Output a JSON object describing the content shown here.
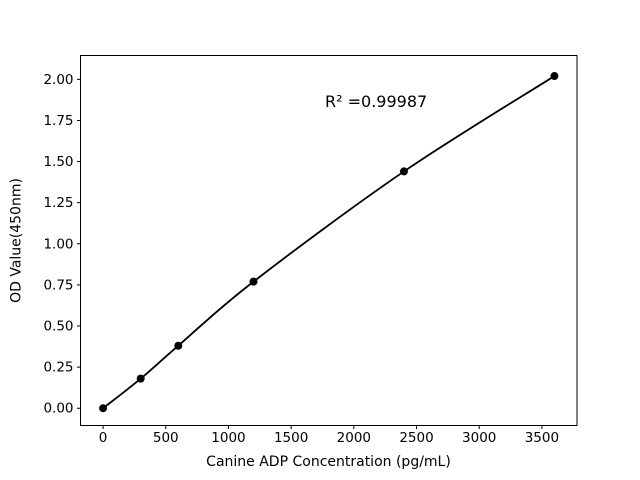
{
  "figure": {
    "background_color": "#ffffff",
    "foreground_color": "#000000"
  },
  "chart_data": {
    "type": "scatter",
    "title": "",
    "xlabel": "Canine ADP Concentration (pg/mL)",
    "ylabel": "OD Value(450nm)",
    "r_squared_label": "R² =0.99987",
    "x": [
      0,
      300,
      600,
      1200,
      2400,
      3600
    ],
    "y": [
      0.0,
      0.18,
      0.38,
      0.77,
      1.44,
      2.02
    ],
    "xlim": [
      -180,
      3780
    ],
    "ylim": [
      -0.105,
      2.145
    ],
    "xticks": [
      0,
      500,
      1000,
      1500,
      2000,
      2500,
      3000,
      3500
    ],
    "yticks": [
      0.0,
      0.25,
      0.5,
      0.75,
      1.0,
      1.25,
      1.5,
      1.75,
      2.0
    ],
    "line_color": "#000000",
    "marker_color": "#000000",
    "grid": false,
    "legend": null,
    "fit_line": true
  }
}
